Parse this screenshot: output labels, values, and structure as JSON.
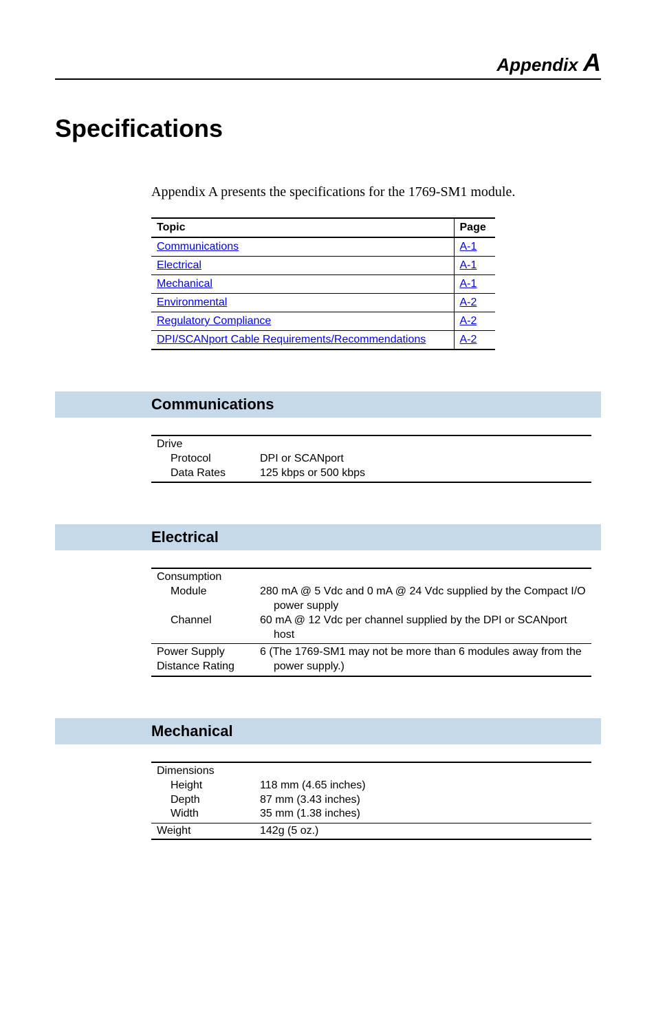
{
  "appendix": {
    "label": "Appendix",
    "letter": "A"
  },
  "title": "Specifications",
  "intro": "Appendix A presents the specifications for the 1769-SM1 module.",
  "topic_table": {
    "headers": {
      "topic": "Topic",
      "page": "Page"
    },
    "rows": [
      {
        "topic": "Communications",
        "page": "A-1"
      },
      {
        "topic": "Electrical",
        "page": "A-1"
      },
      {
        "topic": "Mechanical",
        "page": "A-1"
      },
      {
        "topic": "Environmental",
        "page": "A-2"
      },
      {
        "topic": "Regulatory Compliance",
        "page": "A-2"
      },
      {
        "topic": "DPI/SCANport Cable Requirements/Recommendations",
        "page": "A-2"
      }
    ]
  },
  "sections": {
    "communications": {
      "heading": "Communications",
      "rows": [
        {
          "label": "Drive",
          "sub": [
            {
              "k": "Protocol",
              "v": "DPI or SCANport"
            },
            {
              "k": "Data Rates",
              "v": "125 kbps or 500 kbps"
            }
          ]
        }
      ]
    },
    "electrical": {
      "heading": "Electrical",
      "rows": [
        {
          "label": "Consumption",
          "sub": [
            {
              "k": "Module",
              "v": "280 mA @ 5 Vdc and 0 mA @ 24 Vdc supplied by the Compact I/O power supply"
            },
            {
              "k": "Channel",
              "v": "60 mA @ 12 Vdc per channel supplied by the DPI or SCANport host"
            }
          ]
        },
        {
          "label_lines": [
            "Power Supply",
            "Distance Rating"
          ],
          "v_lines": [
            "6 (The 1769-SM1 may not be more than 6 modules away from the",
            "power supply.)"
          ]
        }
      ]
    },
    "mechanical": {
      "heading": "Mechanical",
      "rows": [
        {
          "label": "Dimensions",
          "sub": [
            {
              "k": "Height",
              "v": "118 mm (4.65 inches)"
            },
            {
              "k": "Depth",
              "v": "87 mm (3.43 inches)"
            },
            {
              "k": "Width",
              "v": "35 mm (1.38 inches)"
            }
          ]
        },
        {
          "label": "Weight",
          "v": "142g (5 oz.)"
        }
      ]
    }
  }
}
